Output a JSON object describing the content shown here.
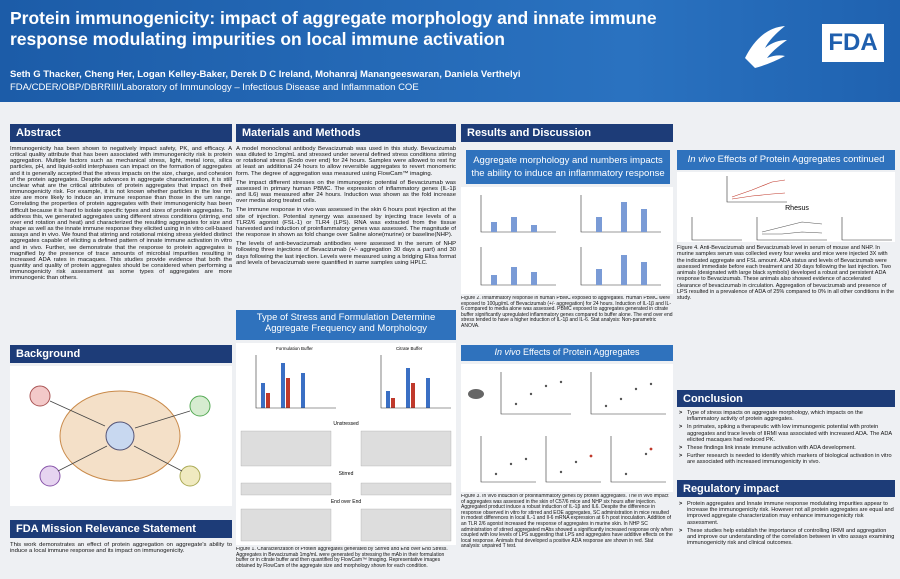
{
  "header": {
    "title": "Protein immunogenicity: impact of aggregate morphology and innate immune response modulating impurities on local immune activation",
    "authors": "Seth G Thacker, Cheng Her, Logan Kelley-Baker, Derek D C Ireland, Mohanraj Manangeeswaran, Daniela Verthelyi",
    "affiliation": "FDA/CDER/OBP/DBRRIII/Laboratory of Immunology – Infectious Disease and Inflammation COE",
    "logo": "FDA"
  },
  "abstract": {
    "heading": "Abstract",
    "text": "Immunogenicity has been shown to negatively impact safety, PK, and efficacy. A critical quality attribute that has been associated with immunogenicity risk is protein aggregation. Multiple factors such as mechanical stress, light, metal ions, silica particles, pH, and liquid-solid interphases can impact on the formation of aggregates and it is generally accepted that the stress impacts on the size, charge, and cohesion of the protein aggregates. Despite advances in aggregate characterization, it is still unclear what are the critical attributes of protein aggregates that impact on their immunogenicity risk. For example, it is not known whether particles in the low nm size are more likely to induce an immune response than those in the um range. Correlating the properties of protein aggregates with their immunogenicity has been difficult because it is hard to isolate specific types and sizes of protein aggregates. To address this, we generated aggregates using different stress conditions (stirring, end over end rotation and heat) and characterized the resulting aggregates for size and shape as well as the innate immune response they elicited using in in vitro cell-based assays and in vivo. We found that stirring and rotational mixing stress yielded distinct aggregates capable of eliciting a defined pattern of innate immune activation in vitro and in vivo. Further, we demonstrate that the response to protein aggregates is magnified by the presence of trace amounts of microbial impurities resulting in increased ADA rates in macaques. This studies provide evidence that both the quantity and quality of protein aggregates should be considered when performing a immunogenicity risk assessment as some types of aggregates are more immunogenic than others."
  },
  "background": {
    "heading": "Background"
  },
  "mission": {
    "heading": "FDA Mission Relevance Statement",
    "text": "This work demonstrates an effect of protein aggregation on aggregate's ability to induce a local immune response and its impact on immunogenicity."
  },
  "methods": {
    "heading": "Materials and Methods",
    "paragraphs": [
      "A model monoclonal antibody Bevacizumab was used in this study. Bevacizumab was diluted to 1mg/mL and stressed under several defined stress conditions stirring or rotational stress (Endo over end) for 24 hours. Samples were allowed to rest for at least an additional 24 hours to allow reversible aggregates to revert monomeric form. The degree of aggregation was measured using FlowCam™ imaging.",
      "The impact different stresses on the immunogenic potential of Bevacizumab was assessed in primary human PBMC. The expression of inflammatory genes (IL-1β and IL6) was measured after 24 hours. Induction was shown as the fold increase over media along treated cells.",
      "The immune response in vivo was assessed in the skin 6 hours post injection at the site of injection. Potential synergy was assessed by injecting trace levels of a TLR2/6 agonist (FSL-1) or TLR4 (LPS). RNA was extracted from the tissue harvested and induction of proinflammatory genes was assessed. The magnitude of the response in shown as fold change over Saline alone(murine) or baseline(NHP).",
      "The levels of anti-bevacizumab antibodies were assessed in the serum of NHP following three injections of Bevacizumab (+/- aggregation 30 days a part) and 30 days following the last injection. Levels were measured using a bridging Elisa format and levels of bevacizumab were quantified in same samples using HPLC."
    ]
  },
  "stress": {
    "heading": "Type of Stress and Formulation Determine Aggregate Frequency and Morphology",
    "panels": [
      "Formulation Buffer",
      "Citrate Buffer"
    ],
    "rows": [
      "Unstressed",
      "Stirred",
      "End over End"
    ],
    "caption": "Figure 1. Characterization of Protein aggregates generated by Stirred and End over End Stress. Aggregates in Bevacizumab 1mg/mL were generated by stressing the mAb in their formulation buffer or in citrate buffer and then quantified by FlowCam™ Imaging. Representative images obtained by FlowCam of the aggregate size and morphology shown for each condition."
  },
  "results": {
    "heading": "Results and Discussion",
    "sub1": {
      "heading": "Aggregate morphology and numbers impacts the ability to induce an inflammatory response",
      "caption": "Figure 2. Inflammatory response in human PBMC exposed to aggregates. Human PBMC were exposed to 100µg/mL of Bevacizumab (+/- aggregation) for 24 hours. Induction of IL-1β and IL-6 compared to media alone was assessed. PBMC exposed to aggregates generated in citrate buffer significantly upregulated inflammatory genes compared to buffer alone. The end over end stress tended to have a higher induction of IL-1β and IL-6. Stat analysis: Non-parametric ANOVA."
    },
    "invivo": {
      "heading_em": "In vivo",
      "heading": " Effects of Protein Aggregates",
      "caption": "Figure 3. In vivo induction of proinflammatory genes by protein aggregates. The in vivo impact of aggregates was assessed in the skin of C57/6 mice and NHP six hours after injection. Aggregated product induce a robust induction of IL-1β and IL6. Despite the difference in response observed in vitro for stirred and EOE aggregates, SC administration in mice resulted in modest differences in local IL-1 and Il-6 mRNA expression at 6 h post inoculation. Addition of an TLR 2/6 agonist increased the response of aggregates in murine skin. In NHP SC administration of stirred aggregated mAbs showed a significantly increased response only when coupled with low levels of LPS suggesting that LPS and aggregates have additive effects on the local response. Animals that developed a positive ADA response are shown in red. Stat analysis: unpaired T test."
    },
    "invivo2": {
      "heading_em": "In vivo",
      "heading": " Effects of Protein Aggregates continued",
      "species": "Rhesus",
      "caption": "Figure 4. Anti-Bevacizumab and Bevacizumab level in serum of mouse and NHP. In murine samples serum was collected every four weeks and mice were injected 3X with the indicated aggregate and FSL amount. ADA status and levels of Bevacizumab were assessed immediate before each treatment and 30 days following the last injection. Two animals (designated with large black symbols) developed a robust and persistent ADA response to Bevacizumab. These animals also showed evidence of accelerated clearance of bevacizumab in circulation. Aggregation of bevacizumab and presence of LPS resulted in a prevalence of ADA of 25% compared to 0% in all other conditions in the study."
    }
  },
  "conclusion": {
    "heading": "Conclusion",
    "bullets": [
      "Type of stress impacts on aggregate morphology, which impacts on the inflammatory activity of protein aggregates.",
      "In primates, spiking a therapeutic with low immunogenic potential with protein aggregates and trace levels of IIRMI was associated with increased ADA. The ADA elicited macaques had reduced PK.",
      "These findings link innate immune activation with ADA development.",
      "Further research is needed to identify which markers of biological activation in vitro are associated with increased immunogenicity in vivo."
    ]
  },
  "regulatory": {
    "heading": "Regulatory impact",
    "bullets": [
      "Protein aggregates and Innate immune response modulating impurities appear to increase the immunogenicity risk. However not all protein aggregates are equal and improved aggregate characterization may enhance immunogenicity risk assessment.",
      "These studies help establish the importance of controlling IIRMI and aggregation and improve our understanding of the correlation between in vitro assays examining immunogenicity risk and clinical outcomes."
    ]
  }
}
